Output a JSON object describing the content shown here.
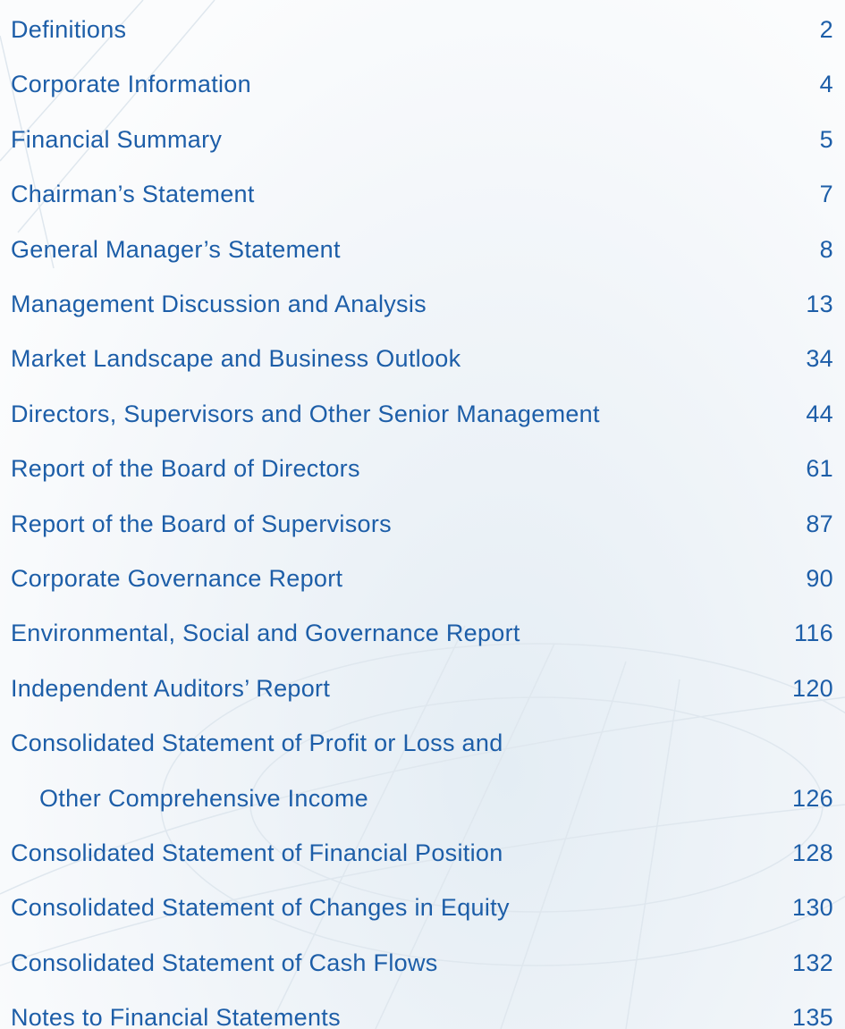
{
  "entries": [
    {
      "lines": [
        "Definitions"
      ],
      "page": 2
    },
    {
      "lines": [
        "Corporate Information"
      ],
      "page": 4
    },
    {
      "lines": [
        "Financial Summary"
      ],
      "page": 5
    },
    {
      "lines": [
        "Chairman’s Statement"
      ],
      "page": 7
    },
    {
      "lines": [
        "General Manager’s Statement"
      ],
      "page": 8
    },
    {
      "lines": [
        "Management Discussion and Analysis"
      ],
      "page": 13
    },
    {
      "lines": [
        "Market Landscape and Business Outlook"
      ],
      "page": 34
    },
    {
      "lines": [
        "Directors, Supervisors and Other Senior Management"
      ],
      "page": 44
    },
    {
      "lines": [
        "Report of the Board of Directors"
      ],
      "page": 61
    },
    {
      "lines": [
        "Report of the Board of Supervisors"
      ],
      "page": 87
    },
    {
      "lines": [
        "Corporate Governance Report"
      ],
      "page": 90
    },
    {
      "lines": [
        "Environmental, Social and Governance Report"
      ],
      "page": 116
    },
    {
      "lines": [
        "Independent Auditors’ Report"
      ],
      "page": 120
    },
    {
      "lines": [
        "Consolidated Statement of Profit or Loss and",
        "Other Comprehensive Income"
      ],
      "page": 126
    },
    {
      "lines": [
        "Consolidated Statement of Financial Position"
      ],
      "page": 128
    },
    {
      "lines": [
        "Consolidated Statement of Changes in Equity"
      ],
      "page": 130
    },
    {
      "lines": [
        "Consolidated Statement of Cash Flows"
      ],
      "page": 132
    },
    {
      "lines": [
        "Notes to Financial Statements"
      ],
      "page": 135
    }
  ]
}
